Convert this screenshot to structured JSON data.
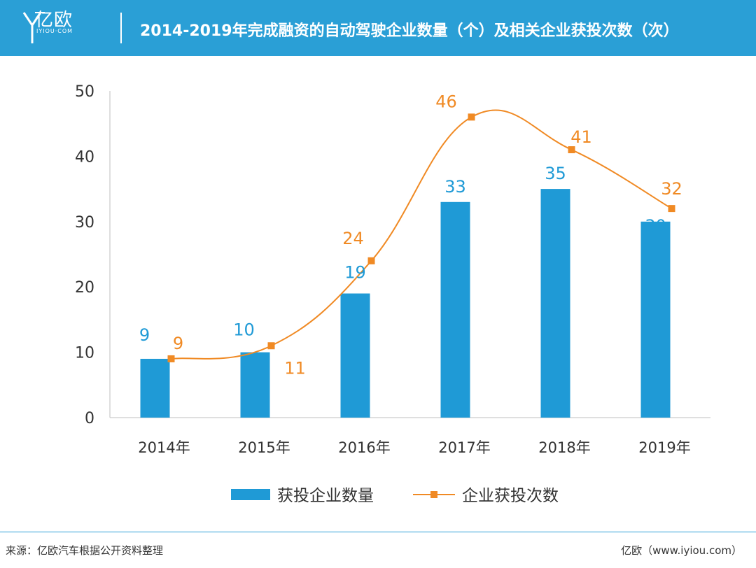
{
  "header": {
    "logo_cn": "亿欧",
    "logo_en": "IYIOU·COM",
    "title": "2014-2019年完成融资的自动驾驶企业数量（个）及相关企业获投次数（次）"
  },
  "chart_data": {
    "type": "bar+line",
    "title": "2014-2019年完成融资的自动驾驶企业数量（个）及相关企业获投次数（次）",
    "categories": [
      "2014年",
      "2015年",
      "2016年",
      "2017年",
      "2018年",
      "2019年"
    ],
    "series": [
      {
        "name": "获投企业数量",
        "type": "bar",
        "values": [
          9,
          10,
          19,
          33,
          35,
          30
        ]
      },
      {
        "name": "企业获投次数",
        "type": "line",
        "values": [
          9,
          11,
          24,
          46,
          41,
          32
        ]
      }
    ],
    "ylim": [
      0,
      50
    ],
    "yticks": [
      0,
      10,
      20,
      30,
      40,
      50
    ],
    "legend_position": "bottom",
    "colors": {
      "bar": "#1f9ad6",
      "line": "#f08a24"
    }
  },
  "footer": {
    "source": "来源：亿欧汽车根据公开资料整理",
    "brand": "亿欧（www.iyiou.com）"
  }
}
